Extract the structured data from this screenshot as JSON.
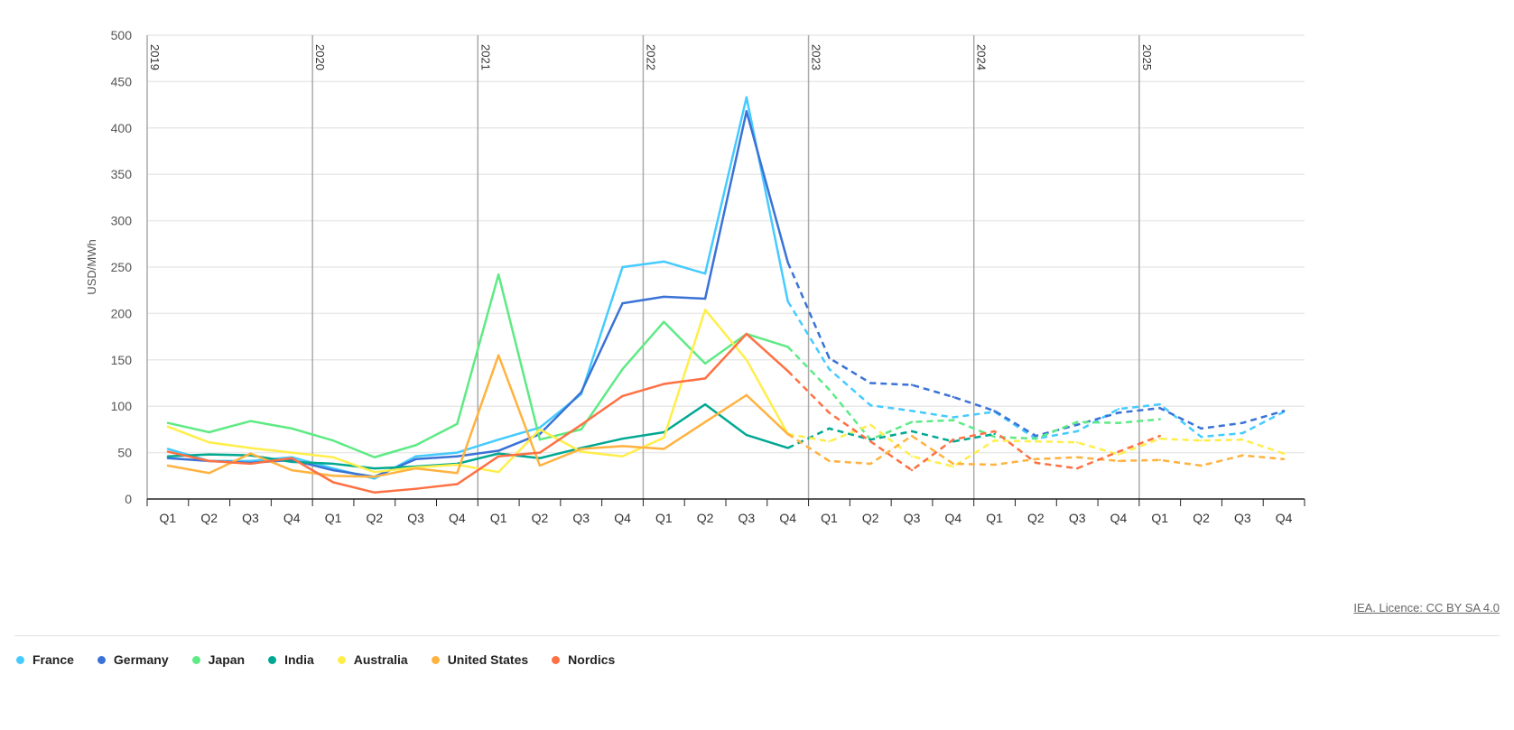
{
  "chart_data": {
    "type": "line",
    "ylabel": "USD/MWh",
    "ylim": [
      0,
      500
    ],
    "yticks": [
      0,
      50,
      100,
      150,
      200,
      250,
      300,
      350,
      400,
      450,
      500
    ],
    "years": [
      "2019",
      "2020",
      "2021",
      "2022",
      "2023",
      "2024",
      "2025"
    ],
    "quarters": [
      "Q1",
      "Q2",
      "Q3",
      "Q4"
    ],
    "forecast_from_index": 15,
    "grid": true,
    "legend_position": "bottom-left",
    "series": [
      {
        "name": "France",
        "color": "#45CBFF",
        "values": [
          54,
          41,
          41,
          45,
          33,
          22,
          46,
          50,
          64,
          77,
          113,
          250,
          256,
          243,
          433,
          213,
          140,
          101,
          95,
          88,
          94,
          65,
          73,
          97,
          102,
          67,
          71,
          94
        ]
      },
      {
        "name": "Germany",
        "color": "#3A72D6",
        "values": [
          44,
          41,
          39,
          42,
          31,
          24,
          43,
          46,
          52,
          70,
          115,
          211,
          218,
          216,
          418,
          255,
          152,
          125,
          123,
          110,
          95,
          68,
          80,
          93,
          98,
          76,
          82,
          95
        ]
      },
      {
        "name": "Japan",
        "color": "#5EEA84",
        "values": [
          82,
          72,
          84,
          76,
          63,
          45,
          58,
          81,
          242,
          64,
          75,
          140,
          191,
          146,
          178,
          164,
          118,
          64,
          83,
          85,
          67,
          65,
          83,
          82,
          86
        ]
      },
      {
        "name": "India",
        "color": "#00A892",
        "values": [
          46,
          48,
          47,
          40,
          38,
          33,
          35,
          38,
          49,
          44,
          55,
          65,
          72,
          102,
          69,
          55,
          76,
          64,
          73,
          62,
          70
        ]
      },
      {
        "name": "Australia",
        "color": "#FFEE4A",
        "values": [
          78,
          61,
          55,
          50,
          45,
          29,
          34,
          37,
          29,
          75,
          51,
          46,
          66,
          204,
          150,
          70,
          62,
          80,
          46,
          35,
          63,
          62,
          61,
          48,
          65,
          63,
          64,
          49
        ]
      },
      {
        "name": "United States",
        "color": "#FFB23F",
        "values": [
          36,
          28,
          49,
          31,
          25,
          24,
          33,
          28,
          155,
          36,
          54,
          57,
          54,
          83,
          112,
          70,
          41,
          38,
          68,
          38,
          37,
          43,
          45,
          41,
          42,
          36,
          47,
          43
        ]
      },
      {
        "name": "Nordics",
        "color": "#FF7043",
        "values": [
          51,
          41,
          38,
          44,
          18,
          7,
          11,
          16,
          46,
          50,
          80,
          111,
          124,
          130,
          178,
          138,
          93,
          62,
          31,
          64,
          73,
          39,
          33,
          51,
          68
        ]
      }
    ]
  },
  "source": "IEA. Licence: CC BY SA 4.0"
}
